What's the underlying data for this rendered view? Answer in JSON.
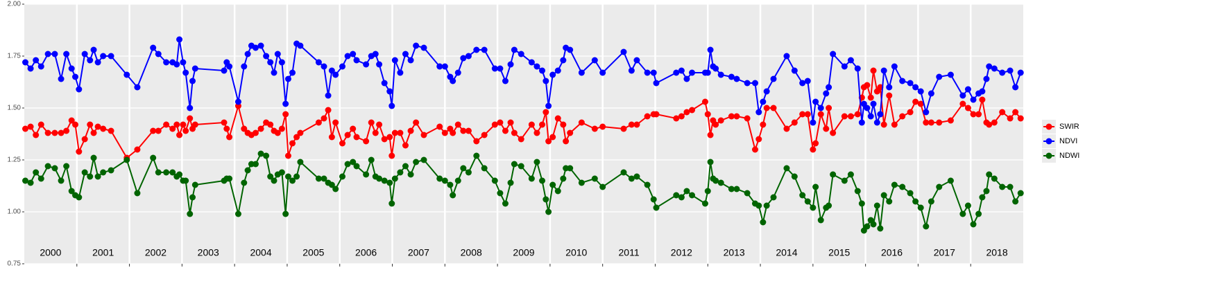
{
  "chart_data": {
    "type": "line",
    "ylim": [
      0.75,
      2.0
    ],
    "yticks": [
      {
        "value": 0.75,
        "label": "0.75"
      },
      {
        "value": 1,
        "label": "1.00"
      },
      {
        "value": 1.25,
        "label": "1.25"
      },
      {
        "value": 1.5,
        "label": "1.50"
      },
      {
        "value": 1.75,
        "label": "1.75"
      },
      {
        "value": 2,
        "label": "2.00"
      }
    ],
    "xlim": [
      2000,
      2019
    ],
    "xticks": [
      2001,
      2002,
      2003,
      2004,
      2005,
      2006,
      2007,
      2008,
      2009,
      2010,
      2011,
      2012,
      2013,
      2014,
      2015,
      2016,
      2017,
      2018
    ],
    "x_labels": [
      "2000",
      "2001",
      "2002",
      "2003",
      "2004",
      "2005",
      "2006",
      "2007",
      "2008",
      "2009",
      "2010",
      "2011",
      "2012",
      "2013",
      "2014",
      "2015",
      "2016",
      "2017",
      "2018"
    ],
    "grid": true,
    "legend": "right",
    "x": [
      2000.02,
      2000.12,
      2000.22,
      2000.32,
      2000.45,
      2000.58,
      2000.7,
      2000.8,
      2000.9,
      2000.97,
      2001.04,
      2001.15,
      2001.25,
      2001.32,
      2001.4,
      2001.5,
      2001.65,
      2001.95,
      2002.15,
      2002.45,
      2002.55,
      2002.7,
      2002.82,
      2002.9,
      2002.95,
      2003.02,
      2003.07,
      2003.15,
      2003.2,
      2003.25,
      2003.8,
      2003.85,
      2003.9,
      2004.07,
      2004.18,
      2004.25,
      2004.32,
      2004.4,
      2004.5,
      2004.6,
      2004.68,
      2004.75,
      2004.82,
      2004.9,
      2004.97,
      2005.02,
      2005.1,
      2005.18,
      2005.25,
      2005.6,
      2005.7,
      2005.78,
      2005.85,
      2005.92,
      2006.05,
      2006.15,
      2006.25,
      2006.32,
      2006.5,
      2006.6,
      2006.68,
      2006.75,
      2006.85,
      2006.95,
      2006.99,
      2007.05,
      2007.15,
      2007.25,
      2007.35,
      2007.45,
      2007.6,
      2007.9,
      2008.0,
      2008.1,
      2008.15,
      2008.25,
      2008.35,
      2008.45,
      2008.6,
      2008.75,
      2008.95,
      2009.05,
      2009.15,
      2009.25,
      2009.32,
      2009.45,
      2009.65,
      2009.75,
      2009.85,
      2009.92,
      2009.97,
      2010.05,
      2010.15,
      2010.25,
      2010.3,
      2010.38,
      2010.6,
      2010.85,
      2011.0,
      2011.4,
      2011.55,
      2011.65,
      2011.85,
      2011.97,
      2012.02,
      2012.4,
      2012.5,
      2012.6,
      2012.7,
      2012.95,
      2013.0,
      2013.05,
      2013.1,
      2013.15,
      2013.25,
      2013.45,
      2013.55,
      2013.75,
      2013.9,
      2013.97,
      2014.05,
      2014.12,
      2014.25,
      2014.5,
      2014.65,
      2014.8,
      2014.9,
      2015.0,
      2015.05,
      2015.15,
      2015.25,
      2015.3,
      2015.38,
      2015.6,
      2015.72,
      2015.85,
      2015.93,
      2015.97,
      2016.03,
      2016.1,
      2016.15,
      2016.22,
      2016.28,
      2016.35,
      2016.45,
      2016.55,
      2016.7,
      2016.85,
      2016.95,
      2017.05,
      2017.15,
      2017.25,
      2017.4,
      2017.62,
      2017.85,
      2017.95,
      2018.05,
      2018.15,
      2018.22,
      2018.3,
      2018.35,
      2018.45,
      2018.6,
      2018.75,
      2018.85,
      2018.95
    ],
    "series": [
      {
        "name": "SWIR",
        "color": "#ff0000",
        "values": [
          1.4,
          1.41,
          1.37,
          1.42,
          1.38,
          1.38,
          1.38,
          1.39,
          1.44,
          1.42,
          1.29,
          1.35,
          1.42,
          1.38,
          1.41,
          1.4,
          1.39,
          1.26,
          1.3,
          1.39,
          1.39,
          1.42,
          1.4,
          1.42,
          1.37,
          1.42,
          1.39,
          1.45,
          1.4,
          1.42,
          1.43,
          1.4,
          1.36,
          1.51,
          1.4,
          1.38,
          1.37,
          1.38,
          1.4,
          1.43,
          1.42,
          1.39,
          1.38,
          1.4,
          1.47,
          1.27,
          1.33,
          1.36,
          1.38,
          1.43,
          1.45,
          1.49,
          1.36,
          1.43,
          1.33,
          1.37,
          1.4,
          1.36,
          1.34,
          1.43,
          1.38,
          1.42,
          1.35,
          1.36,
          1.27,
          1.38,
          1.38,
          1.32,
          1.39,
          1.43,
          1.37,
          1.41,
          1.38,
          1.4,
          1.38,
          1.42,
          1.39,
          1.39,
          1.34,
          1.37,
          1.42,
          1.43,
          1.39,
          1.43,
          1.38,
          1.35,
          1.42,
          1.38,
          1.42,
          1.48,
          1.34,
          1.36,
          1.45,
          1.42,
          1.34,
          1.38,
          1.43,
          1.4,
          1.41,
          1.4,
          1.42,
          1.42,
          1.46,
          1.47,
          1.47,
          1.45,
          1.46,
          1.48,
          1.49,
          1.53,
          1.47,
          1.37,
          1.44,
          1.42,
          1.44,
          1.46,
          1.46,
          1.45,
          1.3,
          1.35,
          1.42,
          1.5,
          1.5,
          1.4,
          1.43,
          1.47,
          1.47,
          1.3,
          1.33,
          1.47,
          1.4,
          1.5,
          1.38,
          1.46,
          1.46,
          1.47,
          1.55,
          1.6,
          1.61,
          1.55,
          1.68,
          1.58,
          1.6,
          1.42,
          1.56,
          1.42,
          1.46,
          1.48,
          1.53,
          1.52,
          1.43,
          1.43,
          1.43,
          1.44,
          1.52,
          1.5,
          1.47,
          1.47,
          1.54,
          1.43,
          1.42,
          1.43,
          1.48,
          1.45,
          1.48,
          1.45
        ]
      },
      {
        "name": "NDVI",
        "color": "#0000ff",
        "values": [
          1.72,
          1.69,
          1.73,
          1.7,
          1.76,
          1.76,
          1.64,
          1.76,
          1.69,
          1.65,
          1.59,
          1.76,
          1.73,
          1.78,
          1.72,
          1.75,
          1.75,
          1.66,
          1.6,
          1.79,
          1.76,
          1.72,
          1.72,
          1.71,
          1.83,
          1.72,
          1.67,
          1.5,
          1.63,
          1.69,
          1.68,
          1.72,
          1.7,
          1.53,
          1.7,
          1.76,
          1.8,
          1.79,
          1.8,
          1.75,
          1.72,
          1.67,
          1.76,
          1.72,
          1.52,
          1.64,
          1.67,
          1.81,
          1.8,
          1.72,
          1.7,
          1.56,
          1.68,
          1.66,
          1.7,
          1.75,
          1.76,
          1.73,
          1.71,
          1.75,
          1.76,
          1.71,
          1.62,
          1.58,
          1.51,
          1.73,
          1.67,
          1.76,
          1.73,
          1.8,
          1.79,
          1.7,
          1.7,
          1.65,
          1.63,
          1.67,
          1.74,
          1.75,
          1.78,
          1.78,
          1.69,
          1.69,
          1.63,
          1.71,
          1.78,
          1.76,
          1.72,
          1.7,
          1.68,
          1.63,
          1.51,
          1.66,
          1.68,
          1.73,
          1.79,
          1.78,
          1.67,
          1.73,
          1.67,
          1.77,
          1.68,
          1.73,
          1.67,
          1.67,
          1.62,
          1.67,
          1.68,
          1.64,
          1.67,
          1.67,
          1.67,
          1.78,
          1.7,
          1.69,
          1.66,
          1.65,
          1.64,
          1.62,
          1.62,
          1.48,
          1.53,
          1.58,
          1.64,
          1.75,
          1.68,
          1.62,
          1.63,
          1.43,
          1.53,
          1.5,
          1.57,
          1.6,
          1.76,
          1.7,
          1.73,
          1.69,
          1.43,
          1.52,
          1.5,
          1.46,
          1.52,
          1.43,
          1.47,
          1.68,
          1.6,
          1.7,
          1.63,
          1.62,
          1.6,
          1.58,
          1.48,
          1.57,
          1.65,
          1.66,
          1.56,
          1.59,
          1.54,
          1.57,
          1.58,
          1.64,
          1.7,
          1.69,
          1.67,
          1.68,
          1.6,
          1.67
        ]
      },
      {
        "name": "NDWI",
        "color": "#006400",
        "values": [
          1.15,
          1.14,
          1.19,
          1.16,
          1.22,
          1.21,
          1.15,
          1.22,
          1.1,
          1.08,
          1.07,
          1.19,
          1.17,
          1.26,
          1.17,
          1.19,
          1.2,
          1.25,
          1.09,
          1.26,
          1.19,
          1.19,
          1.19,
          1.17,
          1.18,
          1.15,
          1.15,
          0.99,
          1.07,
          1.13,
          1.15,
          1.16,
          1.16,
          0.99,
          1.14,
          1.2,
          1.23,
          1.23,
          1.28,
          1.27,
          1.17,
          1.15,
          1.18,
          1.19,
          0.99,
          1.17,
          1.15,
          1.17,
          1.24,
          1.16,
          1.16,
          1.14,
          1.13,
          1.11,
          1.17,
          1.23,
          1.24,
          1.22,
          1.18,
          1.25,
          1.17,
          1.16,
          1.15,
          1.14,
          1.04,
          1.16,
          1.19,
          1.22,
          1.18,
          1.24,
          1.25,
          1.16,
          1.15,
          1.13,
          1.08,
          1.15,
          1.21,
          1.19,
          1.27,
          1.21,
          1.15,
          1.09,
          1.04,
          1.14,
          1.23,
          1.22,
          1.16,
          1.24,
          1.15,
          1.06,
          1.0,
          1.13,
          1.1,
          1.16,
          1.21,
          1.21,
          1.14,
          1.16,
          1.12,
          1.19,
          1.16,
          1.17,
          1.13,
          1.06,
          1.02,
          1.08,
          1.07,
          1.1,
          1.08,
          1.04,
          1.1,
          1.24,
          1.16,
          1.15,
          1.14,
          1.11,
          1.11,
          1.09,
          1.04,
          1.03,
          0.95,
          1.03,
          1.07,
          1.21,
          1.17,
          1.08,
          1.05,
          1.02,
          1.12,
          0.96,
          1.02,
          1.03,
          1.18,
          1.15,
          1.18,
          1.1,
          1.04,
          0.91,
          0.93,
          0.96,
          0.94,
          1.03,
          0.92,
          1.08,
          1.05,
          1.13,
          1.12,
          1.09,
          1.05,
          1.02,
          0.93,
          1.05,
          1.12,
          1.15,
          0.99,
          1.03,
          0.94,
          0.99,
          1.07,
          1.1,
          1.18,
          1.16,
          1.12,
          1.12,
          1.05,
          1.09
        ]
      }
    ]
  }
}
